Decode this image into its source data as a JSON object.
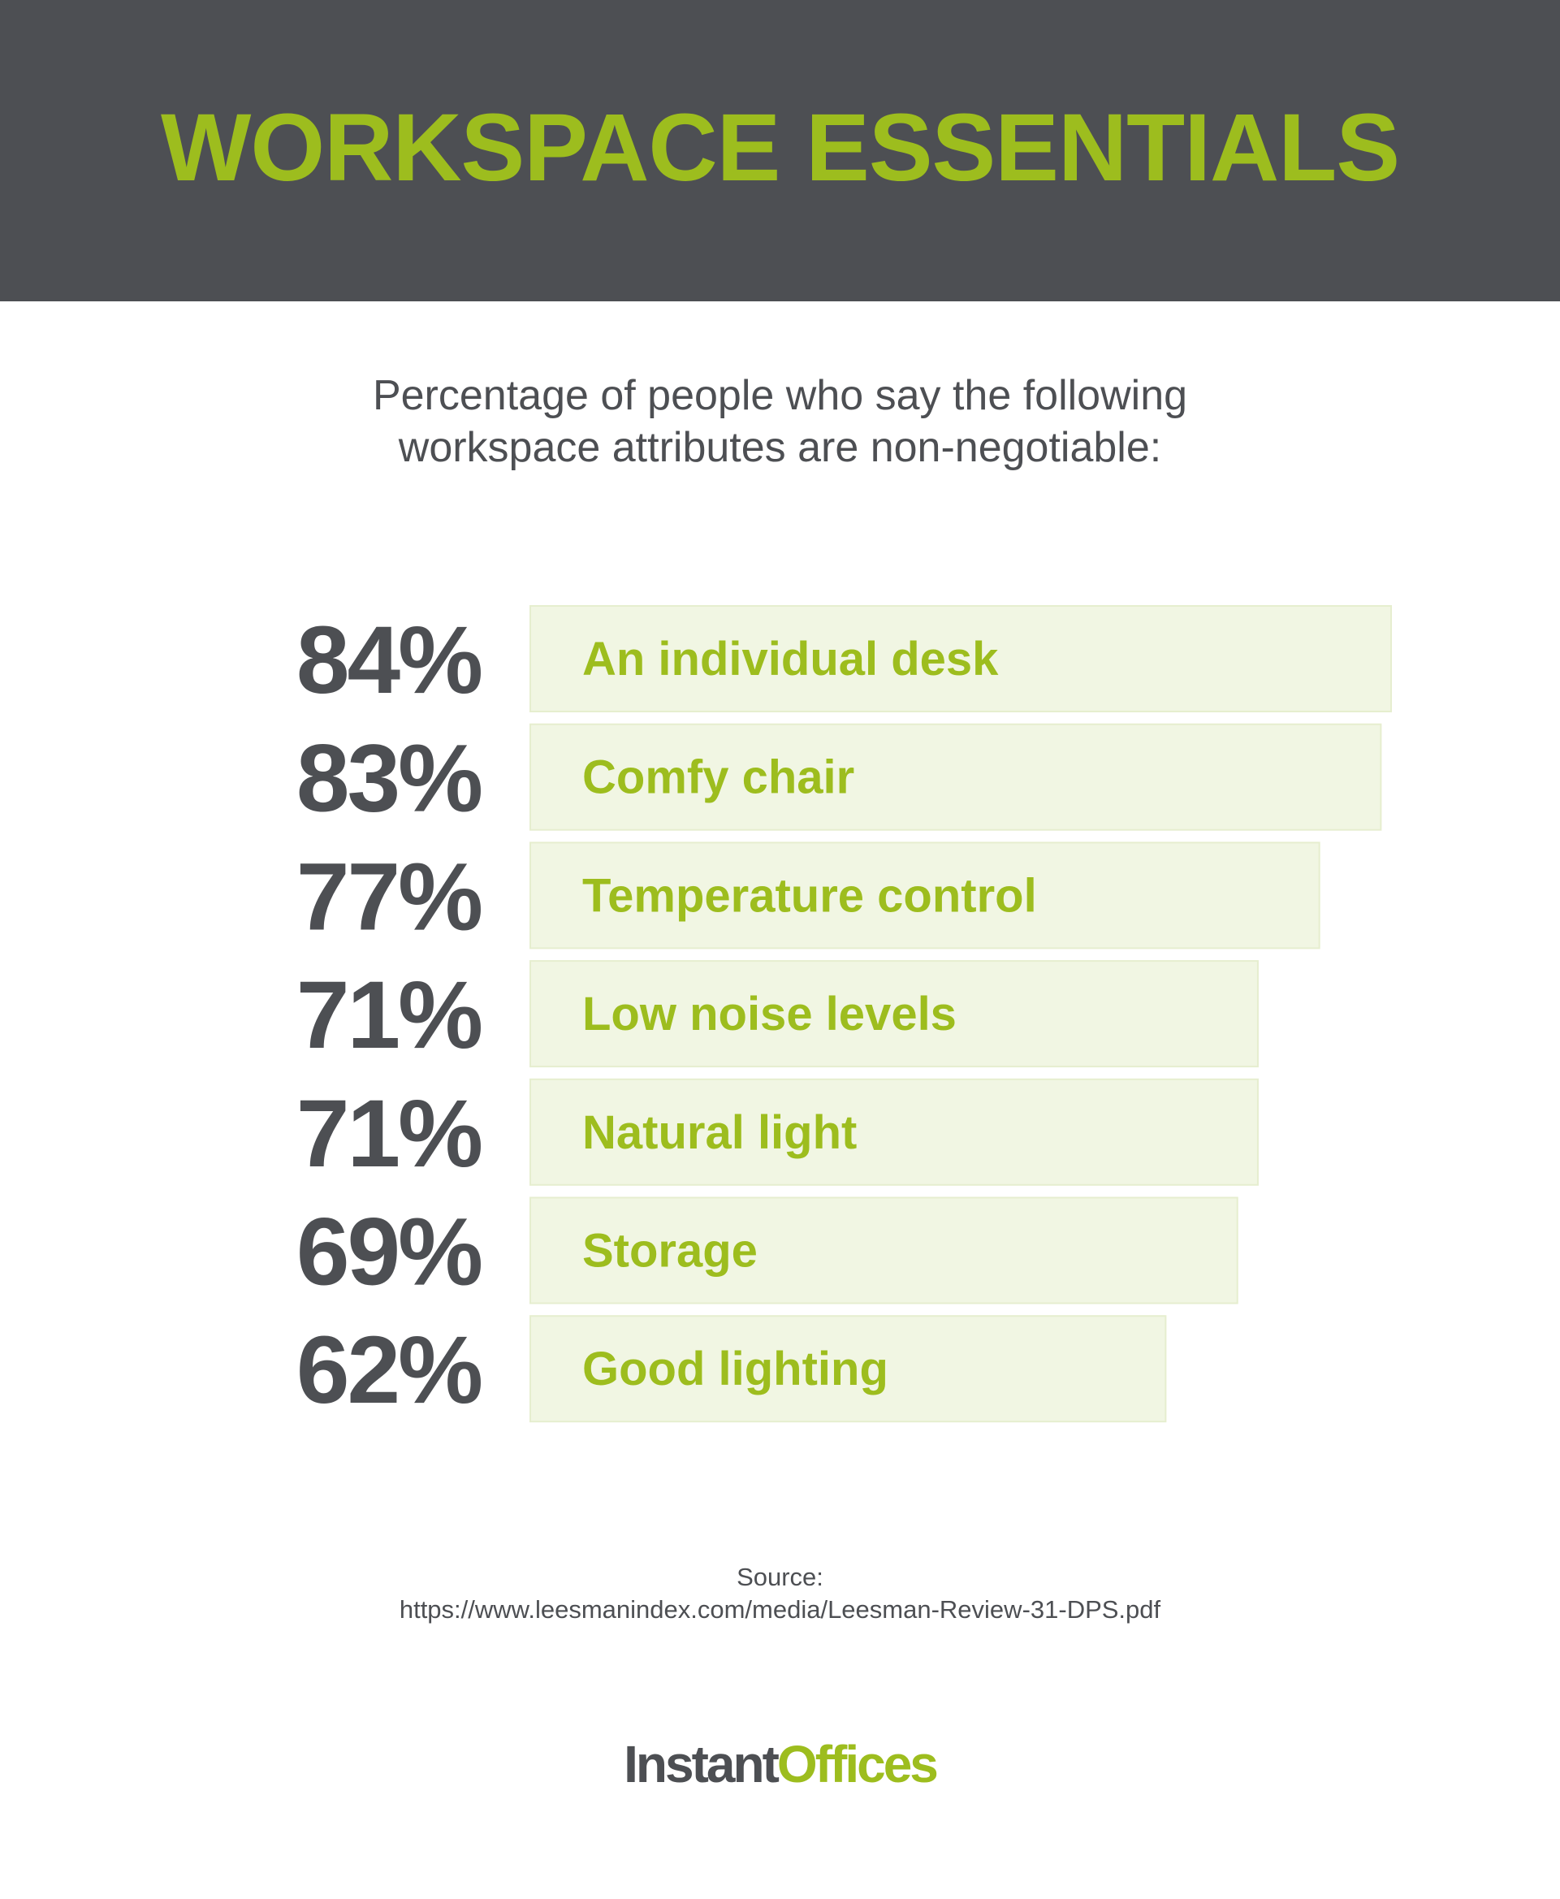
{
  "header": {
    "title": "WORKSPACE ESSENTIALS"
  },
  "subtitle": {
    "line1": "Percentage of people who say the following",
    "line2": "workspace attributes are non-negotiable:"
  },
  "colors": {
    "accent": "#9dbd1e",
    "header_bg": "#4d4f53",
    "text_dark": "#4d4f53",
    "bar_fill": "#f1f6e3"
  },
  "chart_data": {
    "type": "bar",
    "orientation": "horizontal",
    "categories": [
      "An individual desk",
      "Comfy chair",
      "Temperature control",
      "Low noise levels",
      "Natural light",
      "Storage",
      "Good lighting"
    ],
    "values": [
      84,
      83,
      77,
      71,
      71,
      69,
      62
    ],
    "value_labels": [
      "84%",
      "83%",
      "77%",
      "71%",
      "71%",
      "69%",
      "62%"
    ],
    "unit": "%",
    "grid": false,
    "legend": "none"
  },
  "source": {
    "label": "Source:",
    "url": "https://www.leesmanindex.com/media/Leesman-Review-31-DPS.pdf"
  },
  "logo": {
    "part1": "Instant",
    "part2": "Offices"
  }
}
